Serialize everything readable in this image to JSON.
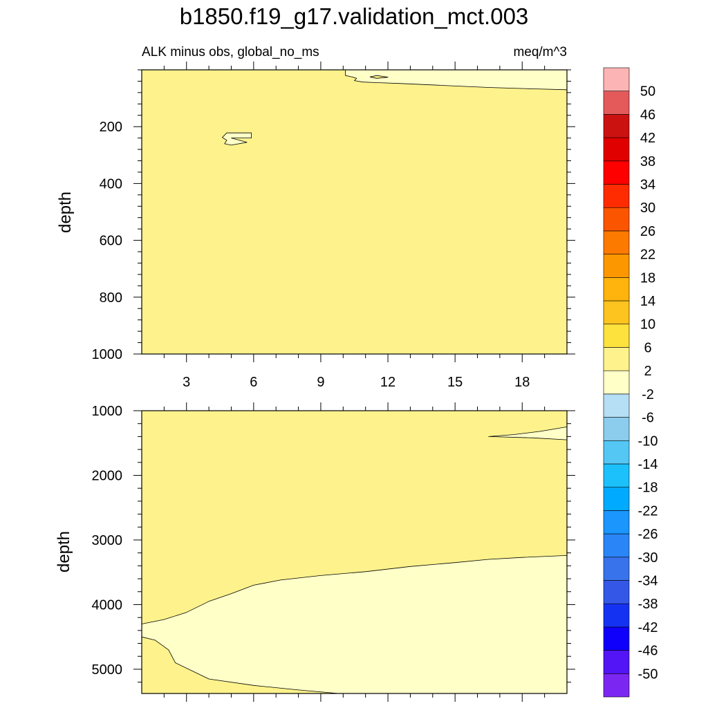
{
  "title": "b1850.f19_g17.validation_mct.003",
  "colors": {
    "positive_small": "#fdf28c",
    "near_zero": "#ffffc8",
    "contour_line": "#000000"
  },
  "chart_data": [
    {
      "type": "contour",
      "panel": "upper",
      "left_label": "ALK minus obs, global_no_ms",
      "right_label": "meq/m^3",
      "xlabel": "",
      "ylabel": "depth",
      "xlim": [
        1,
        20
      ],
      "ylim": [
        1000,
        0
      ],
      "x_ticks": [
        3,
        6,
        9,
        12,
        15,
        18
      ],
      "x_tick_labels": [
        "3",
        "6",
        "9",
        "12",
        "15",
        "18"
      ],
      "y_ticks": [
        200,
        400,
        600,
        800,
        1000
      ],
      "y_tick_labels": [
        "200",
        "400",
        "600",
        "800",
        "1000"
      ],
      "background_band": "2 to 6",
      "regions": [
        {
          "band": "-2 to 2",
          "points": [
            [
              10.1,
              20
            ],
            [
              10.4,
              25
            ],
            [
              10.6,
              30
            ],
            [
              10.5,
              38
            ],
            [
              10.9,
              43
            ],
            [
              11.5,
              45
            ],
            [
              12.5,
              48
            ],
            [
              14.5,
              55
            ],
            [
              16.5,
              62
            ],
            [
              18.5,
              67
            ],
            [
              20,
              70
            ],
            [
              20,
              0
            ],
            [
              10.1,
              0
            ]
          ]
        },
        {
          "band": "2 to 6",
          "points": [
            [
              11.2,
              25
            ],
            [
              11.5,
              20
            ],
            [
              12.0,
              26
            ],
            [
              11.5,
              30
            ]
          ]
        },
        {
          "band": "-2 to 2",
          "points": [
            [
              4.8,
              222
            ],
            [
              5.9,
              222
            ],
            [
              5.9,
              240
            ],
            [
              5.0,
              240
            ],
            [
              5.7,
              255
            ],
            [
              5.0,
              265
            ],
            [
              4.7,
              260
            ],
            [
              4.8,
              248
            ],
            [
              4.6,
              238
            ]
          ]
        }
      ]
    },
    {
      "type": "contour",
      "panel": "lower",
      "left_label": "",
      "right_label": "",
      "xlabel": "",
      "ylabel": "depth",
      "xlim": [
        1,
        20
      ],
      "ylim": [
        5375,
        1000
      ],
      "x_ticks": [
        3,
        6,
        9,
        12,
        15,
        18
      ],
      "y_ticks": [
        1000,
        2000,
        3000,
        4000,
        5000
      ],
      "y_tick_labels": [
        "1000",
        "2000",
        "3000",
        "4000",
        "5000"
      ],
      "background_band": "2 to 6",
      "regions": [
        {
          "band": "-2 to 2",
          "points": [
            [
              1,
              4300
            ],
            [
              2,
              4230
            ],
            [
              3,
              4120
            ],
            [
              4,
              3950
            ],
            [
              5,
              3830
            ],
            [
              6,
              3700
            ],
            [
              7.2,
              3620
            ],
            [
              9,
              3550
            ],
            [
              11,
              3490
            ],
            [
              13,
              3410
            ],
            [
              15,
              3350
            ],
            [
              16.5,
              3300
            ],
            [
              18,
              3270
            ],
            [
              20,
              3240
            ],
            [
              20,
              5375
            ],
            [
              9.8,
              5375
            ],
            [
              8,
              5320
            ],
            [
              6,
              5250
            ],
            [
              4,
              5150
            ],
            [
              2.5,
              4900
            ],
            [
              2.2,
              4700
            ],
            [
              1.6,
              4550
            ],
            [
              1,
              4500
            ]
          ]
        },
        {
          "band": "-2 to 2",
          "points": [
            [
              16.5,
              1400
            ],
            [
              17.6,
              1370
            ],
            [
              18.8,
              1320
            ],
            [
              20,
              1250
            ],
            [
              20,
              1450
            ],
            [
              18.5,
              1420
            ]
          ]
        }
      ]
    }
  ],
  "colorbar": {
    "colors": [
      "#7c26f2",
      "#5314f6",
      "#0f00fb",
      "#1432f2",
      "#3457e7",
      "#3873ec",
      "#2a85f7",
      "#1a96fd",
      "#00aaff",
      "#1cc1fb",
      "#54c7f5",
      "#8ccdee",
      "#b6def5",
      "#ffffc8",
      "#fdf28c",
      "#fde23e",
      "#fdc41f",
      "#feb40c",
      "#fd9700",
      "#fd7a00",
      "#fc5500",
      "#fe2c00",
      "#fe0000",
      "#e10000",
      "#cc1111",
      "#e45a5a",
      "#fcb4b4"
    ],
    "labels": [
      "-50",
      "-46",
      "-42",
      "-38",
      "-34",
      "-30",
      "-26",
      "-22",
      "-18",
      "-14",
      "-10",
      "-6",
      "-2",
      "2",
      "6",
      "10",
      "14",
      "18",
      "22",
      "26",
      "30",
      "34",
      "38",
      "42",
      "46",
      "50"
    ]
  }
}
